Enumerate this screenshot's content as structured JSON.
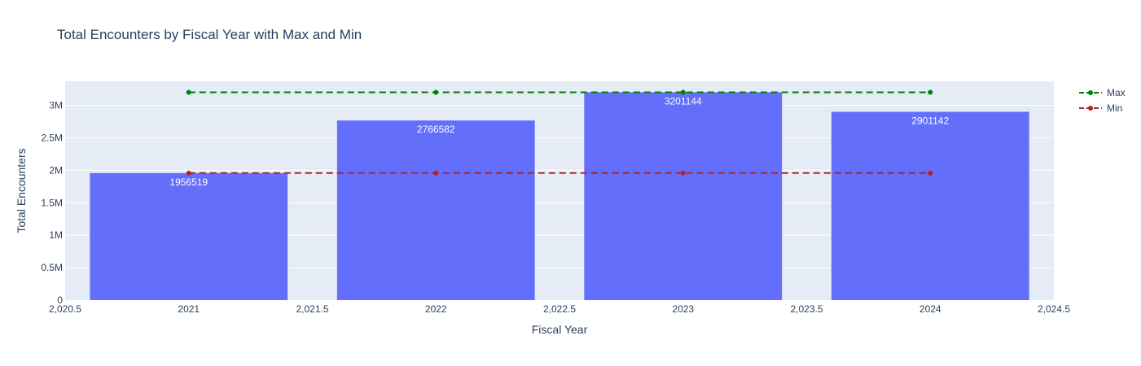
{
  "chart_data": {
    "type": "bar",
    "title": "Total Encounters by Fiscal Year with Max and Min",
    "xlabel": "Fiscal Year",
    "ylabel": "Total Encounters",
    "x": [
      2021,
      2022,
      2023,
      2024
    ],
    "values": [
      1956519,
      2766582,
      3201144,
      2901142
    ],
    "data_labels": [
      "1956519",
      "2766582",
      "3201144",
      "2901142"
    ],
    "xlim": [
      2020.5,
      2024.5
    ],
    "ylim": [
      0,
      3369625
    ],
    "x_ticks": [
      2020.5,
      2021,
      2021.5,
      2022,
      2022.5,
      2023,
      2023.5,
      2024,
      2024.5
    ],
    "x_tick_labels": [
      "2,020.5",
      "2021",
      "2,021.5",
      "2022",
      "2,022.5",
      "2023",
      "2,023.5",
      "2024",
      "2,024.5"
    ],
    "y_ticks": [
      0,
      500000,
      1000000,
      1500000,
      2000000,
      2500000,
      3000000
    ],
    "y_tick_labels": [
      "0",
      "0.5M",
      "1M",
      "1.5M",
      "2M",
      "2.5M",
      "3M"
    ],
    "bar_width": 0.8,
    "bar_color": "#636efa",
    "lines": [
      {
        "name": "Max",
        "color": "#008000",
        "dash": "dash",
        "x": [
          2021,
          2022,
          2023,
          2024
        ],
        "y": [
          3201144,
          3201144,
          3201144,
          3201144
        ]
      },
      {
        "name": "Min",
        "color": "#b22222",
        "dash": "dash",
        "x": [
          2021,
          2022,
          2023,
          2024
        ],
        "y": [
          1956519,
          1956519,
          1956519,
          1956519
        ]
      }
    ],
    "legend": [
      "Max",
      "Min"
    ],
    "legend_position": "top-right",
    "grid": true,
    "plot_bgcolor": "#e5ecf6"
  }
}
